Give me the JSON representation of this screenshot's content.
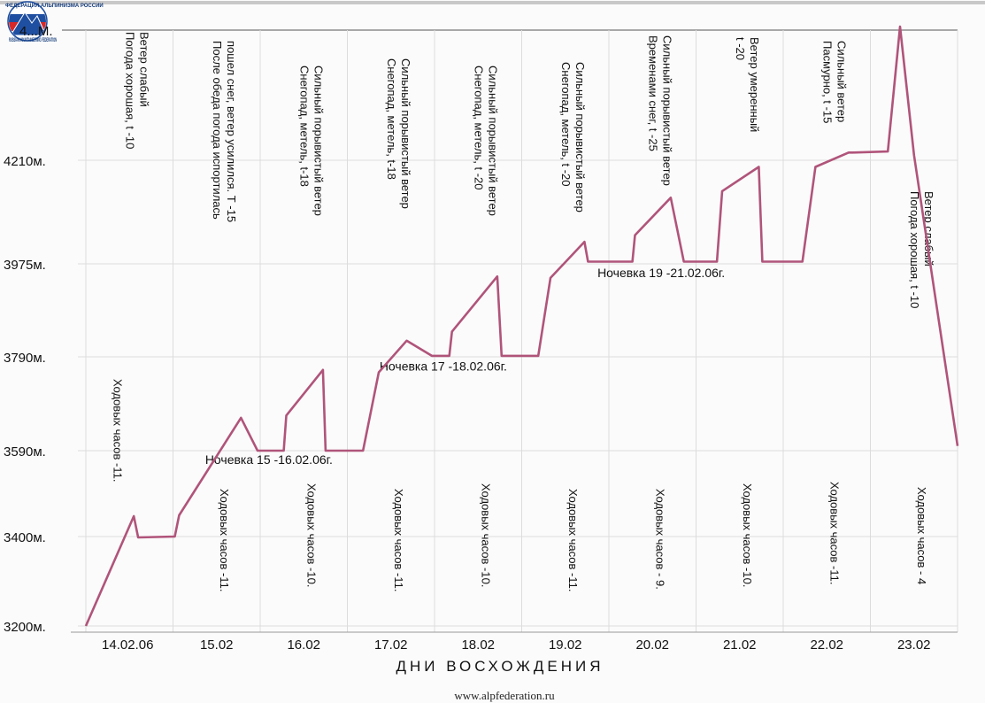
{
  "logo": {
    "caption": "RUSSIAN MOUNTAINEERING FEDERATION",
    "arc_text": "ФЕДЕРАЦИЯ АЛЬПИНИЗМА РОССИИ",
    "colors": [
      "#d62828",
      "#1f4fa0",
      "#ffffff"
    ]
  },
  "source_url": "www.alpfederation.ru",
  "chart_data": {
    "type": "line",
    "title": "",
    "xlabel": "ДНИ ВОСХОЖДЕНИЯ",
    "ylabel": "",
    "top_tick_label": "4...М.",
    "categories": [
      "14.02.06",
      "15.02",
      "16.02",
      "17.02",
      "18.02",
      "19.02",
      "20.02",
      "21.02",
      "22.02",
      "23.02"
    ],
    "y_ticks": [
      {
        "value": 3200,
        "label": "3200м."
      },
      {
        "value": 3400,
        "label": "3400м."
      },
      {
        "value": 3590,
        "label": "3590м."
      },
      {
        "value": 3790,
        "label": "3790м."
      },
      {
        "value": 3975,
        "label": "3975м."
      },
      {
        "value": 4210,
        "label": "4210м."
      }
    ],
    "x_range": [
      0,
      10
    ],
    "grid": true,
    "line_color": "#b0547a",
    "series": [
      {
        "x": [
          0.0,
          0.55,
          0.6,
          1.02,
          1.07,
          1.78,
          1.97,
          2.27,
          2.3,
          2.72,
          2.75,
          3.18,
          3.36,
          3.68,
          3.97,
          4.17,
          4.2,
          4.72,
          4.77,
          5.19,
          5.33,
          5.72,
          5.76,
          6.27,
          6.3,
          6.71,
          6.86,
          7.24,
          7.3,
          7.72,
          7.76,
          8.22,
          8.37,
          8.75,
          8.8,
          9.2,
          9.34,
          9.5,
          10.0
        ],
        "y": [
          3200,
          3445,
          3398,
          3400,
          3447,
          3660,
          3590,
          3590,
          3665,
          3762,
          3590,
          3590,
          3757,
          3822,
          3792,
          3792,
          3840,
          3950,
          3792,
          3792,
          3947,
          4025,
          3980,
          3980,
          4040,
          4125,
          3980,
          3980,
          4140,
          4195,
          3980,
          3980,
          4195,
          4225,
          4225,
          4227,
          4470,
          4220,
          3600
        ]
      }
    ],
    "day_notes": [
      {
        "weather": [
          "Погода хорошая, t -10",
          "Ветер слабый"
        ],
        "hours": "Ходовых часов -11."
      },
      {
        "weather": [
          "После обеда погода испортилась",
          "пошел снег, ветер усилился. Т -15"
        ],
        "hours": "Ходовых часов -11."
      },
      {
        "weather": [
          "Снегопад, метель, t-18",
          "Сильный порывистый ветер"
        ],
        "hours": "Ходовых часов -10."
      },
      {
        "weather": [
          "Снегопад, метель, t-18",
          "Сильный порывистый ветер"
        ],
        "hours": "Ходовых часов -11."
      },
      {
        "weather": [
          "Снегопад, метель, t -20",
          "Сильный порывистый ветер"
        ],
        "hours": "Ходовых часов -10."
      },
      {
        "weather": [
          "Снегопад, метель, t -20",
          "Сильный порывистый ветер"
        ],
        "hours": "Ходовых часов -11."
      },
      {
        "weather": [
          "Временами снег, t -25",
          "Сильный порывистый ветер"
        ],
        "hours": "Ходовых часов - 9."
      },
      {
        "weather": [
          "t -20",
          "Ветер умеренный"
        ],
        "hours": "Ходовых часов -10."
      },
      {
        "weather": [
          "Пасмурно, t -15",
          "Сильный ветер"
        ],
        "hours": "Ходовых часов -11."
      },
      {
        "weather": [
          "Погода хорошая, t -10",
          "Ветер слабый"
        ],
        "hours": "Ходовых часов - 4"
      }
    ],
    "annotations": [
      {
        "text": "Ночевка  15 -16.02.06г.",
        "x": 1.45,
        "y": 3565
      },
      {
        "text": "Ночевка  17 -18.02.06г.",
        "x": 3.45,
        "y": 3765
      },
      {
        "text": "Ночевка  19 -21.02.06г.",
        "x": 5.95,
        "y": 3952
      }
    ]
  }
}
